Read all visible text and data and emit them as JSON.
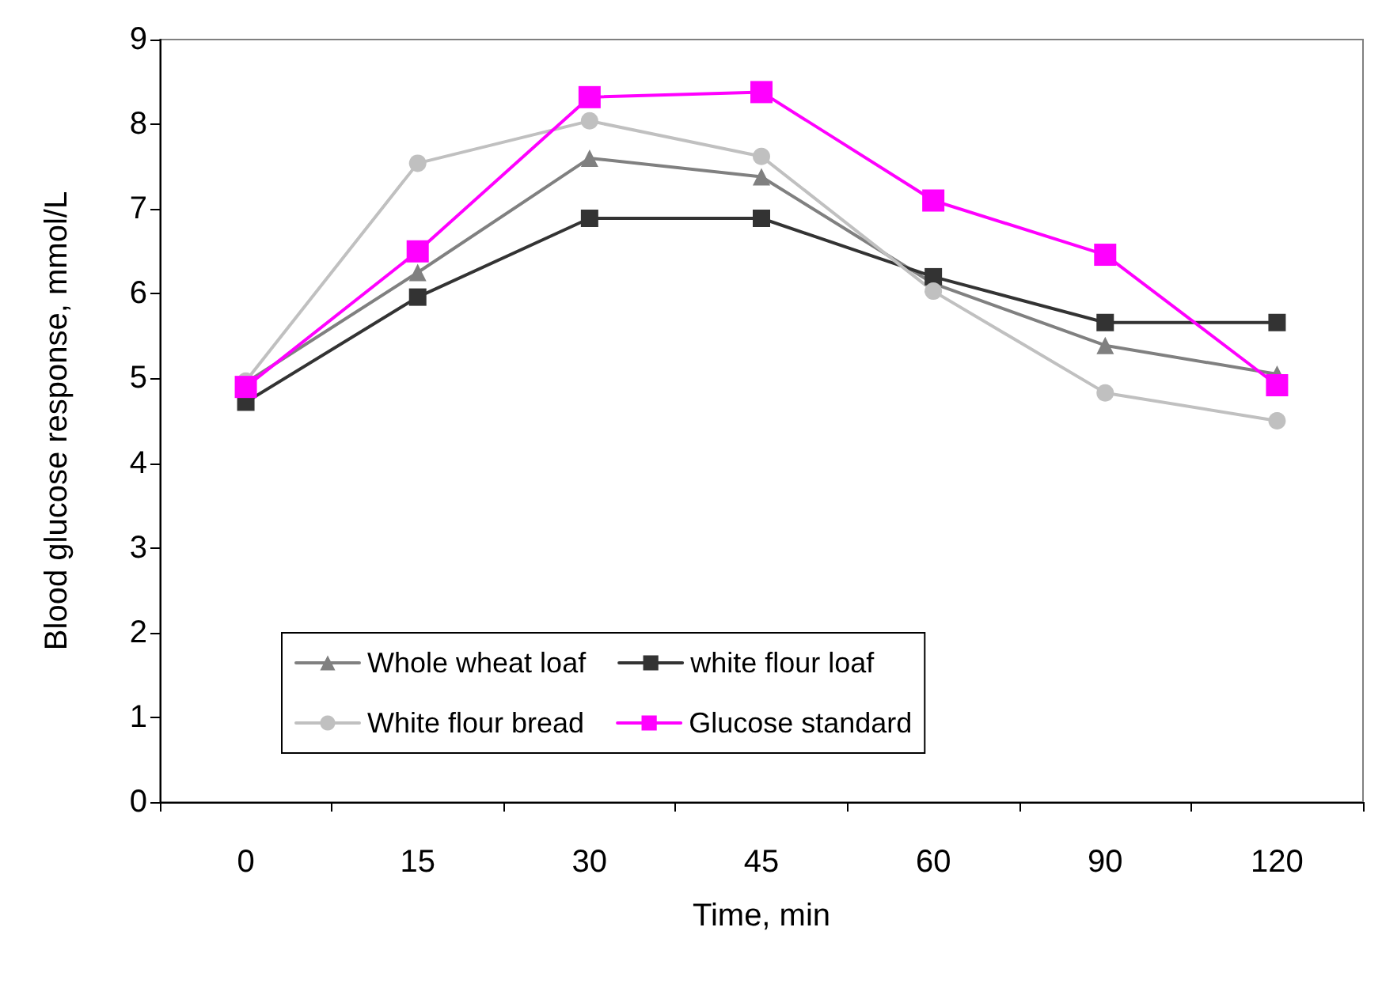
{
  "chart_data": {
    "type": "line",
    "xlabel": "Time, min",
    "ylabel": "Blood glucose response, mmol/L",
    "categories": [
      "0",
      "15",
      "30",
      "45",
      "60",
      "90",
      "120"
    ],
    "series": [
      {
        "name": "Whole wheat loaf",
        "color": "#808080",
        "marker": "triangle",
        "values": [
          4.95,
          6.25,
          7.6,
          7.38,
          6.12,
          5.39,
          5.05
        ]
      },
      {
        "name": "white flour loaf",
        "color": "#333333",
        "marker": "square",
        "values": [
          4.72,
          5.96,
          6.89,
          6.89,
          6.2,
          5.66,
          5.66
        ]
      },
      {
        "name": "White flour bread",
        "color": "#c0c0c0",
        "marker": "circle",
        "values": [
          4.97,
          7.54,
          8.04,
          7.62,
          6.03,
          4.83,
          4.5
        ]
      },
      {
        "name": "Glucose standard",
        "color": "#ff00ff",
        "marker": "square",
        "values": [
          4.9,
          6.5,
          8.32,
          8.38,
          7.1,
          6.46,
          4.92
        ]
      }
    ],
    "ylim": [
      0,
      9
    ],
    "yticks": [
      0,
      1,
      2,
      3,
      4,
      5,
      6,
      7,
      8,
      9
    ],
    "grid": false,
    "legend": "bottom left",
    "line_style": "solid"
  }
}
